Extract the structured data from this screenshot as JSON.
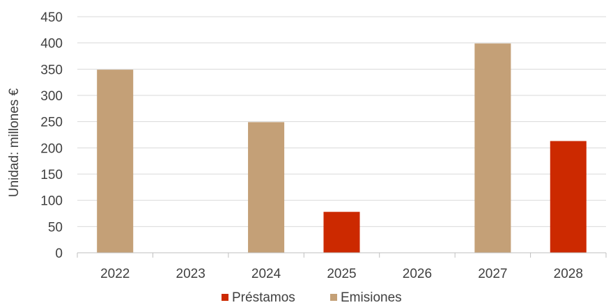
{
  "chart_data": {
    "type": "bar",
    "stacked": true,
    "categories": [
      "2022",
      "2023",
      "2024",
      "2025",
      "2026",
      "2027",
      "2028"
    ],
    "series": [
      {
        "name": "Préstamos",
        "color": "#cc2900",
        "values": [
          0,
          0,
          0,
          78,
          0,
          0,
          213
        ]
      },
      {
        "name": "Emisiones",
        "color": "#c4a077",
        "values": [
          349,
          0,
          249,
          0,
          0,
          399,
          0
        ]
      }
    ],
    "ylabel": "Unidad: millones €",
    "ylim": [
      0,
      450
    ],
    "yticks": [
      0,
      50,
      100,
      150,
      200,
      250,
      300,
      350,
      400,
      450
    ],
    "grid": true,
    "legend": "bottom"
  }
}
